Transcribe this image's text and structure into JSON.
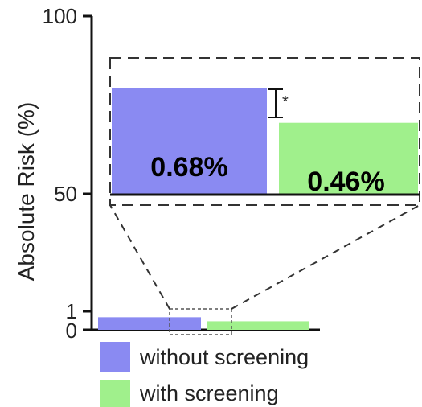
{
  "chart_data": {
    "type": "bar",
    "ylabel": "Absolute Risk (%)",
    "y_ticks": [
      "0",
      "1",
      "50",
      "100"
    ],
    "categories": [
      "without screening",
      "with screening"
    ],
    "values": [
      0.68,
      0.46
    ],
    "value_labels": [
      "0.68%",
      "0.46%"
    ],
    "colors": [
      "#8a8af2",
      "#a0f08c"
    ],
    "significance_marker": "*",
    "grid": false,
    "legend": "bottom"
  }
}
